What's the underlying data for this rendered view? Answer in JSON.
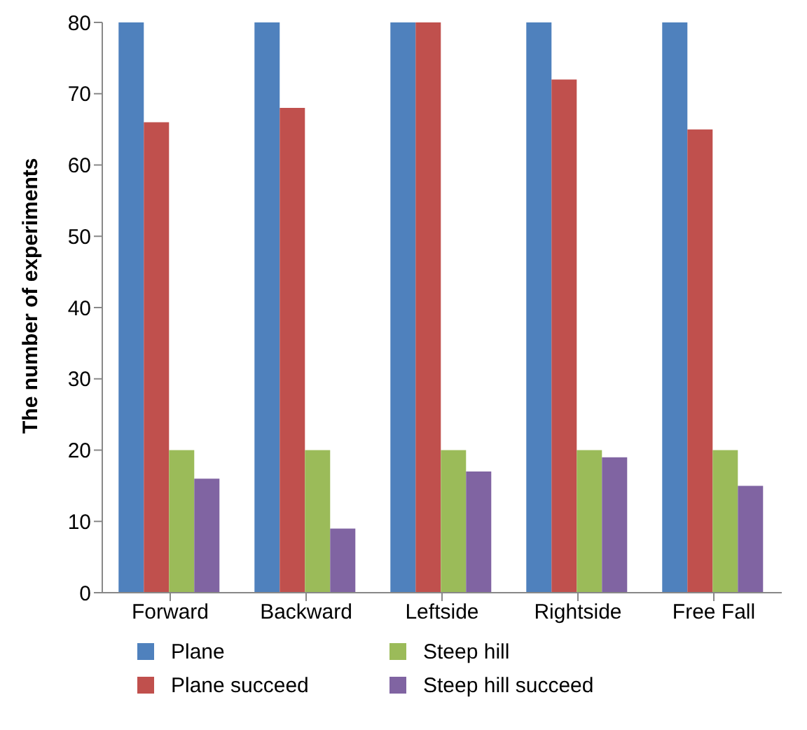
{
  "chart_data": {
    "type": "bar",
    "ylabel": "The number of experiments",
    "categories": [
      "Forward",
      "Backward",
      "Leftside",
      "Rightside",
      "Free Fall"
    ],
    "series": [
      {
        "name": "Plane",
        "color": "#4f81bd",
        "values": [
          80,
          80,
          80,
          80,
          80
        ]
      },
      {
        "name": "Plane succeed",
        "color": "#c0504d",
        "values": [
          66,
          68,
          80,
          72,
          65
        ]
      },
      {
        "name": "Steep hill",
        "color": "#9bbb59",
        "values": [
          20,
          20,
          20,
          20,
          20
        ]
      },
      {
        "name": "Steep hill succeed",
        "color": "#8064a2",
        "values": [
          16,
          9,
          17,
          19,
          15
        ]
      }
    ],
    "ylim": [
      0,
      80
    ],
    "yticks": [
      0,
      10,
      20,
      30,
      40,
      50,
      60,
      70,
      80
    ],
    "grid": false,
    "legend": "bottom"
  }
}
